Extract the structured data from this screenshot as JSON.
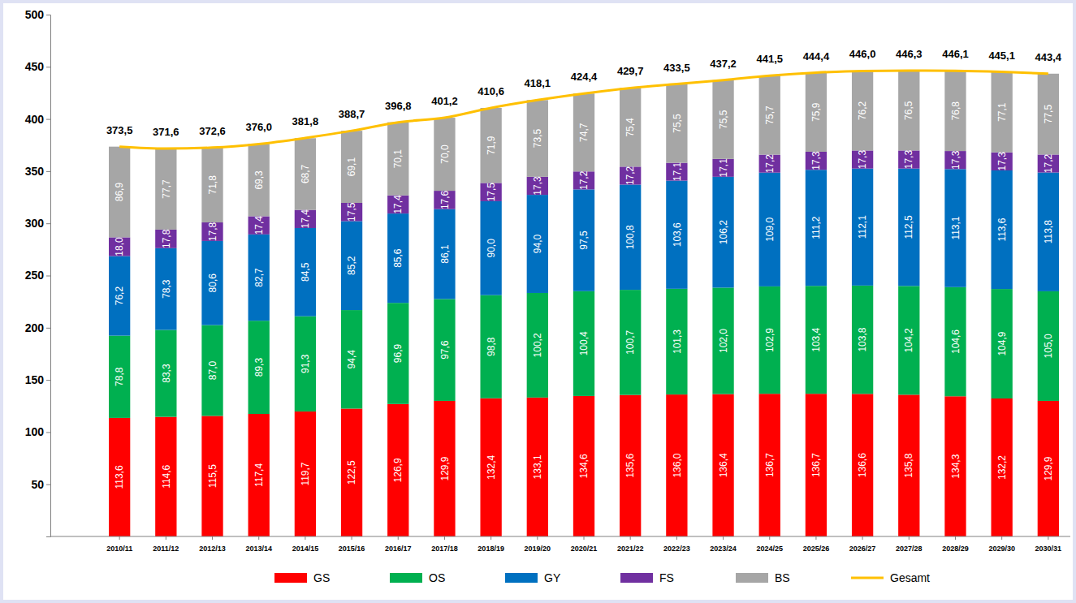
{
  "chart_data": {
    "type": "bar",
    "stacked": true,
    "data_labels": true,
    "grid": false,
    "legend": "bottom",
    "categories": [
      "2010/11",
      "2011/12",
      "2012/13",
      "2013/14",
      "2014/15",
      "2015/16",
      "2016/17",
      "2017/18",
      "2018/19",
      "2019/20",
      "2020/21",
      "2021/22",
      "2022/23",
      "2023/24",
      "2024/25",
      "2025/26",
      "2026/27",
      "2027/28",
      "2028/29",
      "2029/30",
      "2030/31"
    ],
    "ylim": [
      0,
      500
    ],
    "yticks": [
      50,
      100,
      150,
      200,
      250,
      300,
      350,
      400,
      450,
      500
    ],
    "series": [
      {
        "name": "GS",
        "color": "#ff0000",
        "values": [
          113.6,
          114.6,
          115.5,
          117.4,
          119.7,
          122.5,
          126.9,
          129.9,
          132.4,
          133.1,
          134.6,
          135.6,
          136.0,
          136.4,
          136.7,
          136.7,
          136.6,
          135.8,
          134.3,
          132.2,
          129.9
        ],
        "value_labels": [
          "113,6",
          "114,6",
          "115,5",
          "117,4",
          "119,7",
          "122,5",
          "126,9",
          "129,9",
          "132,4",
          "133,1",
          "134,6",
          "135,6",
          "136,0",
          "136,4",
          "136,7",
          "136,7",
          "136,6",
          "135,8",
          "134,3",
          "132,2",
          "129,9"
        ]
      },
      {
        "name": "OS",
        "color": "#00b050",
        "values": [
          78.8,
          83.3,
          87.0,
          89.3,
          91.3,
          94.4,
          96.9,
          97.6,
          98.8,
          100.2,
          100.4,
          100.7,
          101.3,
          102.0,
          102.9,
          103.4,
          103.8,
          104.2,
          104.6,
          104.9,
          105.0
        ],
        "value_labels": [
          "78,8",
          "83,3",
          "87,0",
          "89,3",
          "91,3",
          "94,4",
          "96,9",
          "97,6",
          "98,8",
          "100,2",
          "100,4",
          "100,7",
          "101,3",
          "102,0",
          "102,9",
          "103,4",
          "103,8",
          "104,2",
          "104,6",
          "104,9",
          "105,0"
        ]
      },
      {
        "name": "GY",
        "color": "#0070c0",
        "values": [
          76.2,
          78.3,
          80.6,
          82.7,
          84.5,
          85.2,
          85.6,
          86.1,
          90.0,
          94.0,
          97.5,
          100.8,
          103.6,
          106.2,
          109.0,
          111.2,
          112.1,
          112.5,
          113.1,
          113.6,
          113.8
        ],
        "value_labels": [
          "76,2",
          "78,3",
          "80,6",
          "82,7",
          "84,5",
          "85,2",
          "85,6",
          "86,1",
          "90,0",
          "94,0",
          "97,5",
          "100,8",
          "103,6",
          "106,2",
          "109,0",
          "111,2",
          "112,1",
          "112,5",
          "113,1",
          "113,6",
          "113,8"
        ]
      },
      {
        "name": "FS",
        "color": "#7030a0",
        "values": [
          18.0,
          17.8,
          17.8,
          17.4,
          17.4,
          17.5,
          17.4,
          17.6,
          17.5,
          17.3,
          17.2,
          17.2,
          17.1,
          17.1,
          17.2,
          17.3,
          17.3,
          17.3,
          17.3,
          17.3,
          17.2
        ],
        "value_labels": [
          "18,0",
          "17,8",
          "17,8",
          "17,4",
          "17,4",
          "17,5",
          "17,4",
          "17,6",
          "17,5",
          "17,3",
          "17,2",
          "17,2",
          "17,1",
          "17,1",
          "17,2",
          "17,3",
          "17,3",
          "17,3",
          "17,3",
          "17,3",
          "17,2"
        ]
      },
      {
        "name": "BS",
        "color": "#a6a6a6",
        "values": [
          86.9,
          77.7,
          71.8,
          69.3,
          68.7,
          69.1,
          70.1,
          70.0,
          71.9,
          73.5,
          74.7,
          75.4,
          75.5,
          75.5,
          75.7,
          75.9,
          76.2,
          76.5,
          76.8,
          77.1,
          77.5
        ],
        "value_labels": [
          "86,9",
          "77,7",
          "71,8",
          "69,3",
          "68,7",
          "69,1",
          "70,1",
          "70,0",
          "71,9",
          "73,5",
          "74,7",
          "75,4",
          "75,5",
          "75,5",
          "75,7",
          "75,9",
          "76,2",
          "76,5",
          "76,8",
          "77,1",
          "77,5"
        ]
      },
      {
        "name": "Gesamt",
        "color": "#ffc000",
        "type": "line",
        "values": [
          373.5,
          371.6,
          372.6,
          376.0,
          381.8,
          388.7,
          396.8,
          401.2,
          410.6,
          418.1,
          424.4,
          429.7,
          433.5,
          437.2,
          441.5,
          444.4,
          446.0,
          446.3,
          446.1,
          445.1,
          443.4
        ],
        "value_labels": [
          "373,5",
          "371,6",
          "372,6",
          "376,0",
          "381,8",
          "388,7",
          "396,8",
          "401,2",
          "410,6",
          "418,1",
          "424,4",
          "429,7",
          "433,5",
          "437,2",
          "441,5",
          "444,4",
          "446,0",
          "446,3",
          "446,1",
          "445,1",
          "443,4"
        ]
      }
    ]
  }
}
